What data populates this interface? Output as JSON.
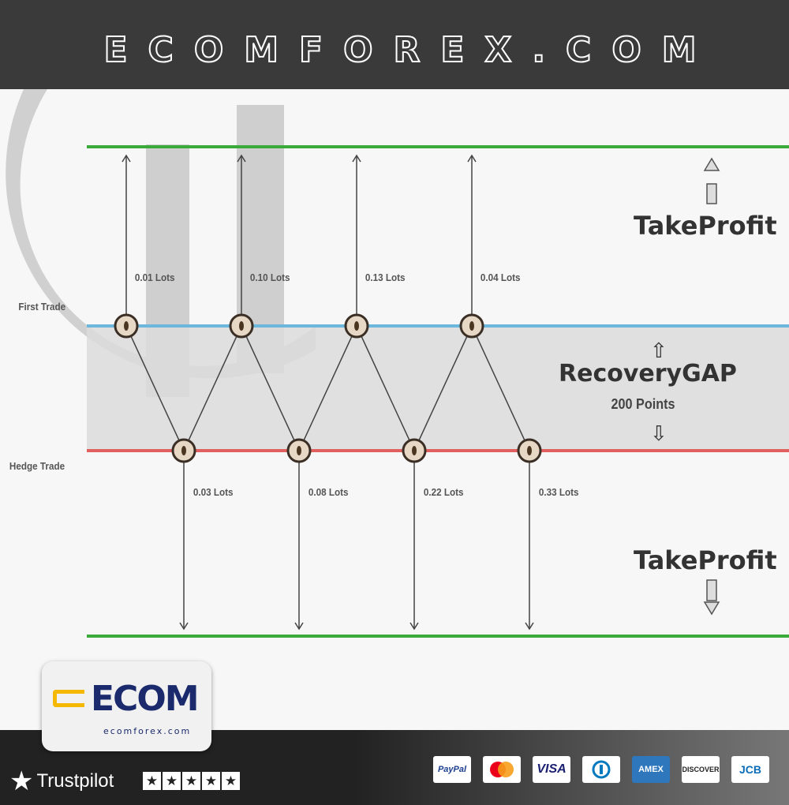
{
  "header": {
    "title": "ECOMFOREX.COM"
  },
  "diagram": {
    "first_trade_label": "First Trade",
    "hedge_trade_label": "Hedge Trade",
    "take_profit_top": "TakeProfit",
    "take_profit_bottom": "TakeProfit",
    "recovery_gap": "RecoveryGAP",
    "gap_points": "200 Points",
    "top_lots": [
      "0.01 Lots",
      "0.10 Lots",
      "0.13 Lots",
      "0.04 Lots"
    ],
    "bottom_lots": [
      "0.03 Lots",
      "0.08 Lots",
      "0.22 Lots",
      "0.33 Lots"
    ],
    "colors": {
      "take_profit": "#3aaa3a",
      "first_trade": "#6bb8dc",
      "hedge_trade": "#e06060",
      "gap": "#dcdcdc"
    }
  },
  "logo": {
    "text": "ECOM",
    "subtitle": "ecomforex.com"
  },
  "footer": {
    "trustpilot": "Trustpilot",
    "rating_stars": 5,
    "payment_methods": [
      "PayPal",
      "Mastercard",
      "VISA",
      "Diners",
      "AMEX",
      "DISCOVER",
      "JCB"
    ]
  }
}
